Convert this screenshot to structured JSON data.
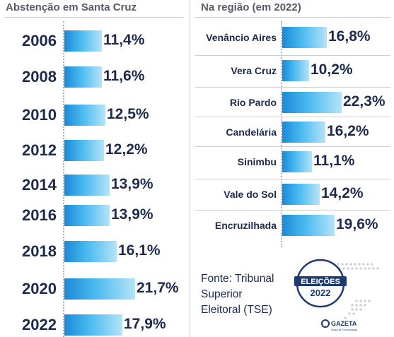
{
  "chart_data": [
    {
      "type": "bar",
      "orientation": "horizontal",
      "title": "Abstenção em Santa Cruz",
      "categories": [
        "2006",
        "2008",
        "2010",
        "2012",
        "2014",
        "2016",
        "2018",
        "2020",
        "2022"
      ],
      "values": [
        11.4,
        11.6,
        12.5,
        12.2,
        13.9,
        13.9,
        16.1,
        21.7,
        17.9
      ],
      "value_labels": [
        "11,4%",
        "11,6%",
        "12,5%",
        "12,2%",
        "13,9%",
        "13,9%",
        "16,1%",
        "21,7%",
        "17,9%"
      ],
      "grid": false
    },
    {
      "type": "bar",
      "orientation": "horizontal",
      "title": "Na região (em 2022)",
      "categories": [
        "Venâncio Aires",
        "Vera Cruz",
        "Rio Pardo",
        "Candelária",
        "Sinimbu",
        "Vale do Sol",
        "Encruzilhada"
      ],
      "values": [
        16.8,
        10.2,
        22.3,
        16.2,
        11.1,
        14.2,
        19.6
      ],
      "value_labels": [
        "16,8%",
        "10,2%",
        "22,3%",
        "16,2%",
        "11,1%",
        "14,2%",
        "19,6%"
      ],
      "grid": false
    }
  ],
  "source_text": "Fonte: Tribunal Superior Eleitoral (TSE)",
  "logo": {
    "main": "ELEIÇÕES",
    "year": "2022",
    "brand": "GAZETA",
    "brand_sub": "Grupo de Comunicação"
  },
  "colors": {
    "bar_start": "#1a8ad8",
    "bar_end": "#b5e3f8",
    "text": "#1d2a4d",
    "title": "#555b66"
  }
}
